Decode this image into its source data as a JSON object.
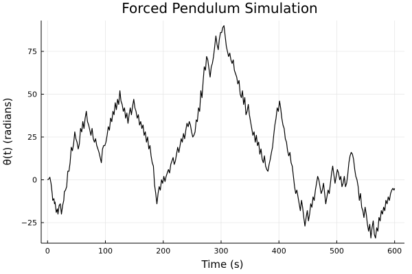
{
  "chart_data": {
    "type": "line",
    "title": "Forced Pendulum Simulation",
    "xlabel": "Time (s)",
    "ylabel": "θ(t) (radians)",
    "xlim": [
      -11,
      617
    ],
    "ylim": [
      -37,
      93
    ],
    "xticks": [
      0,
      100,
      200,
      300,
      400,
      500,
      600
    ],
    "yticks": [
      -25,
      0,
      25,
      50,
      75
    ],
    "grid": true,
    "legend": "none",
    "series": [
      {
        "color": "#000000",
        "points": [
          [
            0,
            0
          ],
          [
            2,
            0.5
          ],
          [
            4,
            1.5
          ],
          [
            6,
            -2
          ],
          [
            8,
            -8
          ],
          [
            9,
            -12
          ],
          [
            11,
            -11
          ],
          [
            12,
            -14
          ],
          [
            13,
            -13
          ],
          [
            15,
            -19
          ],
          [
            17,
            -17
          ],
          [
            18,
            -20
          ],
          [
            20,
            -15
          ],
          [
            22,
            -14
          ],
          [
            24,
            -20
          ],
          [
            26,
            -15
          ],
          [
            28,
            -12
          ],
          [
            29,
            -7
          ],
          [
            31,
            -6
          ],
          [
            33,
            -4
          ],
          [
            35,
            5
          ],
          [
            37,
            5
          ],
          [
            39,
            10
          ],
          [
            41,
            19
          ],
          [
            43,
            17
          ],
          [
            45,
            21
          ],
          [
            47,
            28
          ],
          [
            49,
            24
          ],
          [
            51,
            22
          ],
          [
            53,
            18
          ],
          [
            55,
            21
          ],
          [
            57,
            30
          ],
          [
            59,
            28
          ],
          [
            61,
            34
          ],
          [
            63,
            30
          ],
          [
            65,
            36
          ],
          [
            67,
            40
          ],
          [
            69,
            34
          ],
          [
            71,
            32
          ],
          [
            73,
            29
          ],
          [
            75,
            26
          ],
          [
            77,
            30
          ],
          [
            79,
            24
          ],
          [
            81,
            22
          ],
          [
            83,
            24
          ],
          [
            85,
            20
          ],
          [
            87,
            18
          ],
          [
            89,
            16
          ],
          [
            91,
            13
          ],
          [
            93,
            10
          ],
          [
            95,
            18
          ],
          [
            97,
            20
          ],
          [
            99,
            20
          ],
          [
            101,
            22
          ],
          [
            103,
            26
          ],
          [
            105,
            31
          ],
          [
            107,
            29
          ],
          [
            109,
            36
          ],
          [
            111,
            34
          ],
          [
            113,
            40
          ],
          [
            115,
            38
          ],
          [
            117,
            45
          ],
          [
            119,
            41
          ],
          [
            121,
            47
          ],
          [
            123,
            44
          ],
          [
            125,
            52
          ],
          [
            127,
            46
          ],
          [
            129,
            44
          ],
          [
            131,
            40
          ],
          [
            133,
            42
          ],
          [
            135,
            36
          ],
          [
            137,
            39
          ],
          [
            139,
            33
          ],
          [
            141,
            38
          ],
          [
            143,
            42
          ],
          [
            145,
            38
          ],
          [
            147,
            43
          ],
          [
            149,
            47
          ],
          [
            151,
            42
          ],
          [
            153,
            40
          ],
          [
            155,
            36
          ],
          [
            157,
            38
          ],
          [
            159,
            32
          ],
          [
            161,
            34
          ],
          [
            163,
            30
          ],
          [
            165,
            32
          ],
          [
            167,
            26
          ],
          [
            169,
            28
          ],
          [
            171,
            22
          ],
          [
            173,
            25
          ],
          [
            175,
            18
          ],
          [
            177,
            20
          ],
          [
            179,
            14
          ],
          [
            181,
            10
          ],
          [
            183,
            8
          ],
          [
            185,
            -3
          ],
          [
            187,
            -8
          ],
          [
            189,
            -14
          ],
          [
            191,
            -8
          ],
          [
            193,
            -4
          ],
          [
            195,
            -6
          ],
          [
            197,
            0
          ],
          [
            199,
            -2
          ],
          [
            201,
            2
          ],
          [
            203,
            -1
          ],
          [
            205,
            2
          ],
          [
            207,
            4
          ],
          [
            209,
            6
          ],
          [
            211,
            4
          ],
          [
            213,
            9
          ],
          [
            215,
            11
          ],
          [
            217,
            13
          ],
          [
            219,
            9
          ],
          [
            221,
            11
          ],
          [
            223,
            15
          ],
          [
            225,
            19
          ],
          [
            227,
            16
          ],
          [
            229,
            20
          ],
          [
            231,
            24
          ],
          [
            233,
            22
          ],
          [
            235,
            27
          ],
          [
            237,
            24
          ],
          [
            239,
            29
          ],
          [
            241,
            33
          ],
          [
            243,
            31
          ],
          [
            245,
            34
          ],
          [
            247,
            32
          ],
          [
            249,
            28
          ],
          [
            251,
            25
          ],
          [
            253,
            26
          ],
          [
            255,
            28
          ],
          [
            257,
            35
          ],
          [
            259,
            34
          ],
          [
            261,
            42
          ],
          [
            263,
            40
          ],
          [
            265,
            52
          ],
          [
            267,
            48
          ],
          [
            269,
            58
          ],
          [
            271,
            66
          ],
          [
            273,
            64
          ],
          [
            275,
            72
          ],
          [
            277,
            70
          ],
          [
            279,
            65
          ],
          [
            281,
            60
          ],
          [
            283,
            66
          ],
          [
            285,
            68
          ],
          [
            287,
            72
          ],
          [
            289,
            78
          ],
          [
            291,
            84
          ],
          [
            293,
            79
          ],
          [
            295,
            76
          ],
          [
            297,
            82
          ],
          [
            299,
            86
          ],
          [
            301,
            86
          ],
          [
            303,
            89
          ],
          [
            305,
            90
          ],
          [
            307,
            84
          ],
          [
            309,
            78
          ],
          [
            311,
            75
          ],
          [
            313,
            72
          ],
          [
            315,
            74
          ],
          [
            317,
            70
          ],
          [
            319,
            68
          ],
          [
            321,
            70
          ],
          [
            323,
            64
          ],
          [
            325,
            62
          ],
          [
            327,
            60
          ],
          [
            329,
            56
          ],
          [
            331,
            58
          ],
          [
            333,
            50
          ],
          [
            335,
            48
          ],
          [
            337,
            52
          ],
          [
            339,
            44
          ],
          [
            341,
            48
          ],
          [
            343,
            38
          ],
          [
            345,
            40
          ],
          [
            347,
            44
          ],
          [
            349,
            38
          ],
          [
            351,
            34
          ],
          [
            353,
            30
          ],
          [
            355,
            26
          ],
          [
            357,
            28
          ],
          [
            359,
            22
          ],
          [
            361,
            26
          ],
          [
            363,
            20
          ],
          [
            365,
            22
          ],
          [
            367,
            15
          ],
          [
            369,
            18
          ],
          [
            371,
            12
          ],
          [
            373,
            10
          ],
          [
            375,
            14
          ],
          [
            377,
            8
          ],
          [
            379,
            6
          ],
          [
            381,
            5
          ],
          [
            383,
            9
          ],
          [
            385,
            12
          ],
          [
            387,
            16
          ],
          [
            389,
            19
          ],
          [
            391,
            26
          ],
          [
            393,
            32
          ],
          [
            395,
            36
          ],
          [
            397,
            42
          ],
          [
            399,
            40
          ],
          [
            401,
            46
          ],
          [
            403,
            42
          ],
          [
            405,
            36
          ],
          [
            407,
            32
          ],
          [
            409,
            30
          ],
          [
            411,
            24
          ],
          [
            413,
            22
          ],
          [
            415,
            17
          ],
          [
            417,
            14
          ],
          [
            419,
            16
          ],
          [
            421,
            10
          ],
          [
            423,
            8
          ],
          [
            425,
            2
          ],
          [
            427,
            -4
          ],
          [
            429,
            -8
          ],
          [
            431,
            -6
          ],
          [
            433,
            -10
          ],
          [
            435,
            -14
          ],
          [
            437,
            -18
          ],
          [
            439,
            -12
          ],
          [
            441,
            -16
          ],
          [
            443,
            -22
          ],
          [
            445,
            -27
          ],
          [
            447,
            -22
          ],
          [
            449,
            -18
          ],
          [
            451,
            -24
          ],
          [
            453,
            -20
          ],
          [
            455,
            -14
          ],
          [
            457,
            -16
          ],
          [
            459,
            -10
          ],
          [
            461,
            -12
          ],
          [
            463,
            -6
          ],
          [
            465,
            -2
          ],
          [
            467,
            2
          ],
          [
            469,
            0
          ],
          [
            471,
            -4
          ],
          [
            473,
            -8
          ],
          [
            475,
            -6
          ],
          [
            477,
            -2
          ],
          [
            479,
            -8
          ],
          [
            481,
            -14
          ],
          [
            483,
            -10
          ],
          [
            485,
            -6
          ],
          [
            487,
            -8
          ],
          [
            489,
            -2
          ],
          [
            491,
            4
          ],
          [
            493,
            8
          ],
          [
            495,
            3
          ],
          [
            497,
            -2
          ],
          [
            499,
            2
          ],
          [
            501,
            6
          ],
          [
            503,
            4
          ],
          [
            505,
            0
          ],
          [
            507,
            2
          ],
          [
            509,
            -4
          ],
          [
            511,
            -2
          ],
          [
            513,
            2
          ],
          [
            515,
            -4
          ],
          [
            517,
            -2
          ],
          [
            519,
            3
          ],
          [
            521,
            10
          ],
          [
            523,
            14
          ],
          [
            525,
            16
          ],
          [
            527,
            15
          ],
          [
            529,
            12
          ],
          [
            531,
            6
          ],
          [
            533,
            2
          ],
          [
            535,
            0
          ],
          [
            537,
            -4
          ],
          [
            539,
            -12
          ],
          [
            541,
            -8
          ],
          [
            543,
            -16
          ],
          [
            545,
            -18
          ],
          [
            547,
            -22
          ],
          [
            549,
            -16
          ],
          [
            551,
            -20
          ],
          [
            553,
            -26
          ],
          [
            555,
            -30
          ],
          [
            557,
            -26
          ],
          [
            559,
            -34
          ],
          [
            561,
            -28
          ],
          [
            563,
            -24
          ],
          [
            565,
            -32
          ],
          [
            567,
            -34
          ],
          [
            569,
            -28
          ],
          [
            571,
            -30
          ],
          [
            573,
            -22
          ],
          [
            575,
            -24
          ],
          [
            577,
            -18
          ],
          [
            579,
            -20
          ],
          [
            581,
            -16
          ],
          [
            583,
            -18
          ],
          [
            585,
            -12
          ],
          [
            587,
            -14
          ],
          [
            589,
            -10
          ],
          [
            591,
            -12
          ],
          [
            593,
            -8
          ],
          [
            595,
            -6
          ],
          [
            597,
            -5
          ],
          [
            599,
            -6
          ],
          [
            600,
            -5
          ]
        ]
      }
    ]
  }
}
